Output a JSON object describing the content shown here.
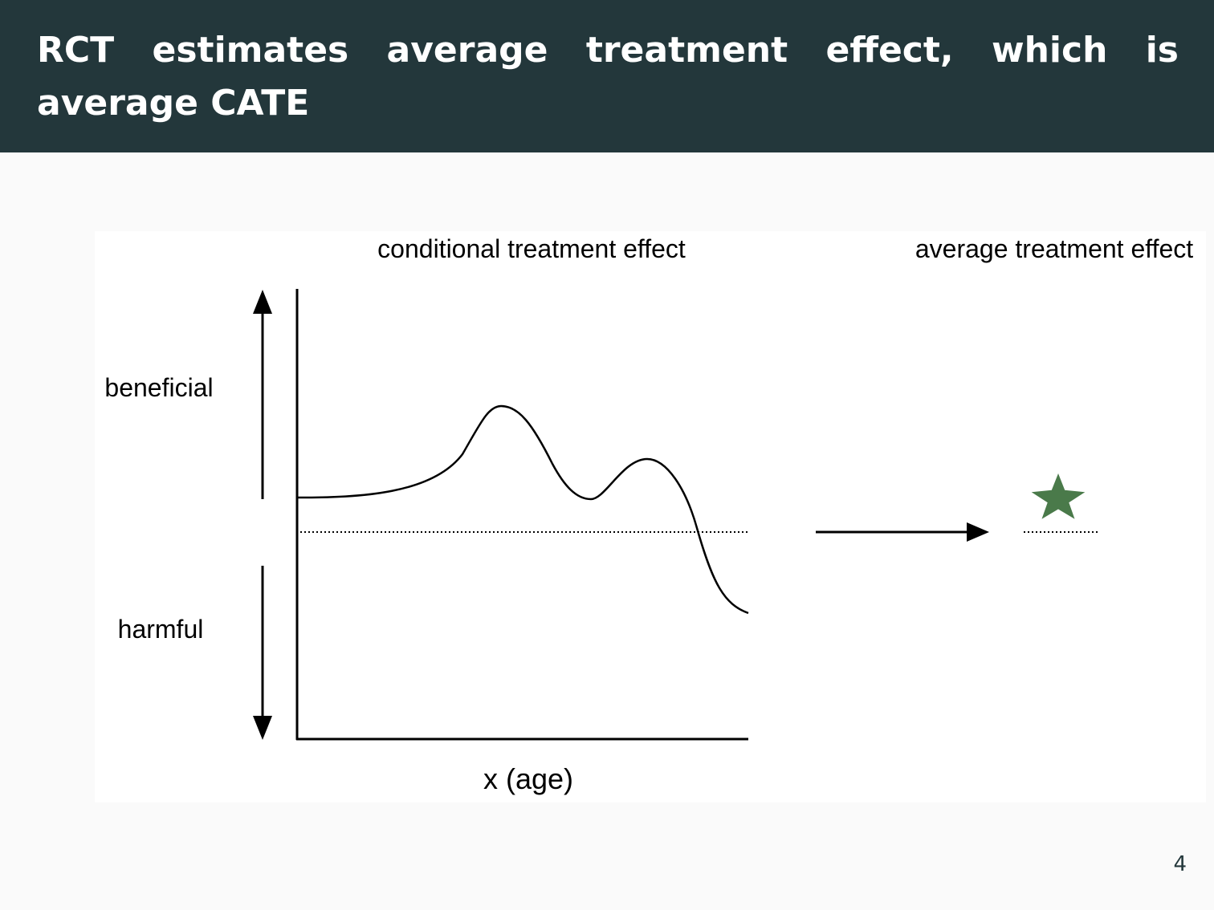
{
  "slide": {
    "title": "RCT estimates average treatment effect, which is average CATE",
    "page_number": "4"
  },
  "diagram": {
    "left_heading": "conditional treatment effect",
    "right_heading": "average treatment effect",
    "upper_label": "beneficial",
    "lower_label": "harmful",
    "x_axis_label": "x (age)",
    "colors": {
      "header_bg": "#23373b",
      "star": "#4a7a4a",
      "line": "#000000"
    },
    "icons": {
      "ate_marker": "star-icon"
    }
  }
}
